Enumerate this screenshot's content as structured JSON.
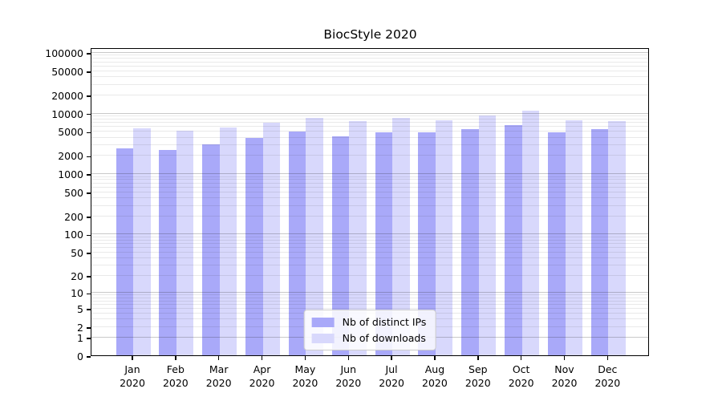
{
  "chart_data": {
    "type": "bar",
    "title": "BiocStyle 2020",
    "year_label": "2020",
    "categories": [
      "Jan",
      "Feb",
      "Mar",
      "Apr",
      "May",
      "Jun",
      "Jul",
      "Aug",
      "Sep",
      "Oct",
      "Nov",
      "Dec"
    ],
    "series": [
      {
        "name": "Nb of distinct IPs",
        "color": "#a9a9f9",
        "values": [
          2600,
          2450,
          3000,
          3800,
          4900,
          4100,
          4750,
          4800,
          5300,
          6300,
          4700,
          5300
        ]
      },
      {
        "name": "Nb of downloads",
        "color": "#d8d8fc",
        "values": [
          5550,
          5000,
          5650,
          6850,
          8300,
          7300,
          8300,
          7600,
          9100,
          10900,
          7550,
          7350
        ]
      }
    ],
    "y_ticks": [
      100000,
      50000,
      20000,
      10000,
      5000,
      2000,
      1000,
      500,
      200,
      100,
      50,
      20,
      10,
      5,
      2,
      1,
      0
    ],
    "y_scale": "log1p",
    "ylim": [
      0,
      125000
    ],
    "xlabel": "",
    "ylabel": "",
    "grid": true,
    "legend_position": "lower center"
  }
}
